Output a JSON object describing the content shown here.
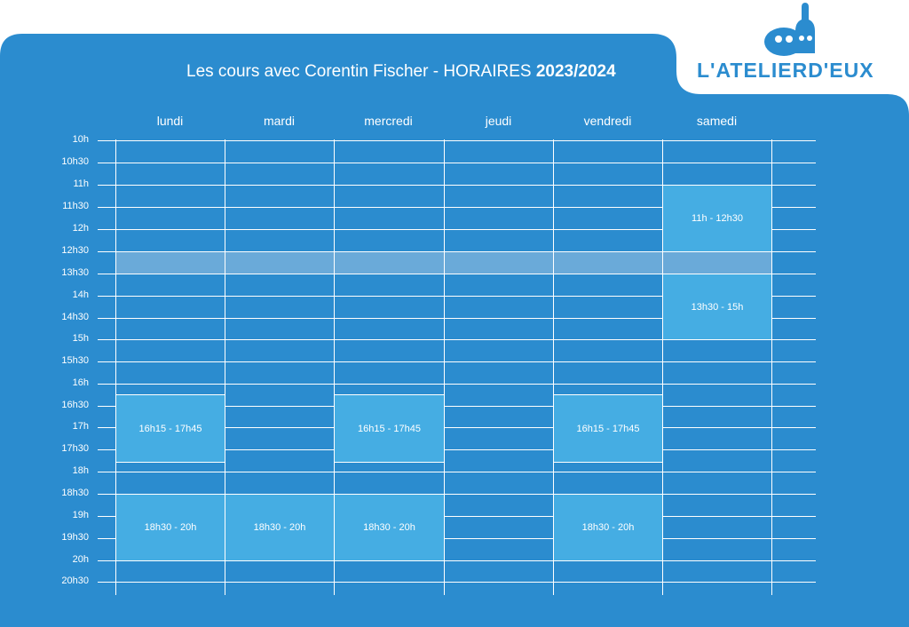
{
  "header": {
    "title_prefix": "Les cours avec Corentin Fischer - HORAIRES ",
    "title_year": "2023/2024"
  },
  "logo": {
    "text": "L'ATELIERD'EUX"
  },
  "colors": {
    "panel": "#2b8ccf",
    "slot": "#45ade3",
    "lunch": "#6aaad9"
  },
  "days": [
    "lundi",
    "mardi",
    "mercredi",
    "jeudi",
    "vendredi",
    "samedi"
  ],
  "times": [
    "10h",
    "10h30",
    "11h",
    "11h30",
    "12h",
    "12h30",
    "13h30",
    "14h",
    "14h30",
    "15h",
    "15h30",
    "16h",
    "16h30",
    "17h",
    "17h30",
    "18h",
    "18h30",
    "19h",
    "19h30",
    "20h",
    "20h30"
  ],
  "slots": [
    {
      "day": 0,
      "label": "16h15 - 17h45"
    },
    {
      "day": 2,
      "label": "16h15 - 17h45"
    },
    {
      "day": 4,
      "label": "16h15 - 17h45"
    },
    {
      "day": 0,
      "label": "18h30 - 20h"
    },
    {
      "day": 1,
      "label": "18h30 - 20h"
    },
    {
      "day": 2,
      "label": "18h30 - 20h"
    },
    {
      "day": 4,
      "label": "18h30 - 20h"
    },
    {
      "day": 5,
      "label": "11h - 12h30"
    },
    {
      "day": 5,
      "label": "13h30 - 15h"
    }
  ]
}
